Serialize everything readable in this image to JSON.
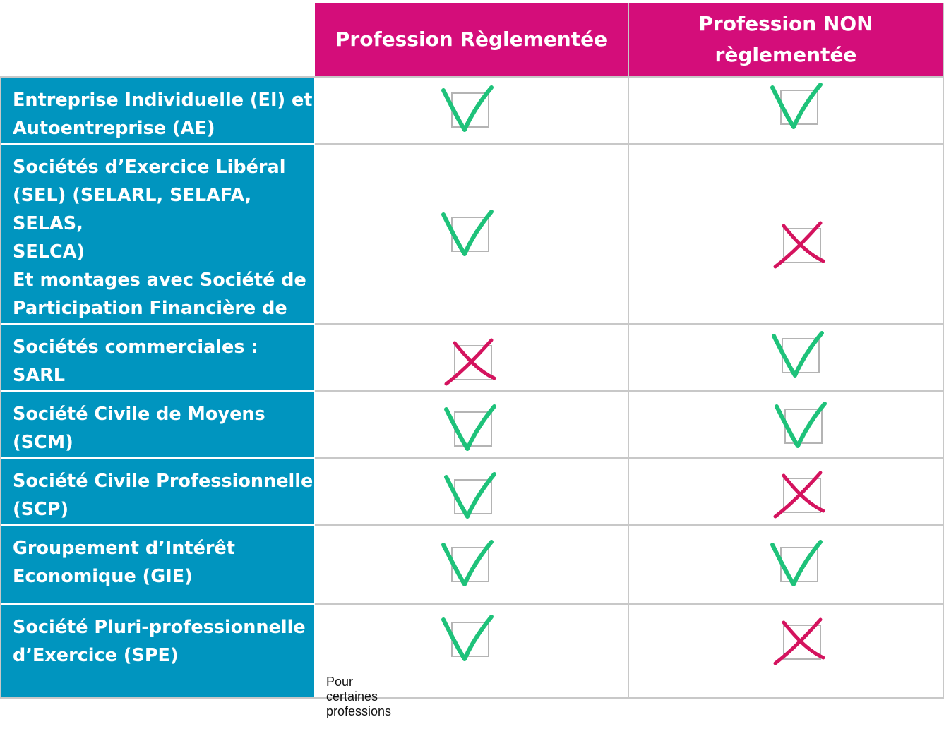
{
  "columns": [
    "Profession Règlementée",
    "Profession NON\nrèglementée"
  ],
  "rows": [
    {
      "label": "Entreprise Individuelle (EI) et\nAutoentreprise (AE)",
      "marks": [
        "check",
        "check"
      ]
    },
    {
      "label": "Sociétés d’Exercice Libéral\n(SEL) (SELARL, SELAFA, SELAS,\nSELCA)\nEt montages avec Société de\nParticipation Financière de\nProfession Libérale (SPFPL)",
      "marks": [
        "check",
        "cross"
      ]
    },
    {
      "label": "Sociétés commerciales : SARL\n/ SAS",
      "marks": [
        "cross",
        "check"
      ]
    },
    {
      "label": "Société Civile de Moyens\n(SCM)",
      "marks": [
        "check",
        "check"
      ]
    },
    {
      "label": "Société Civile Professionnelle\n(SCP)",
      "marks": [
        "check",
        "cross"
      ]
    },
    {
      "label": "Groupement d’Intérêt\nEconomique (GIE)",
      "marks": [
        "check",
        "check"
      ]
    },
    {
      "label": "Société Pluri-professionnelle\nd’Exercice (SPE)",
      "marks": [
        "check",
        "cross"
      ]
    }
  ],
  "footnote": "Pour certaines professions",
  "colors": {
    "header": "#d40d7a",
    "label_column": "#0095bf",
    "check": "#1ec27a",
    "cross": "#d4135e"
  },
  "icons": {
    "check": "check-mark-icon",
    "cross": "cross-mark-icon"
  }
}
